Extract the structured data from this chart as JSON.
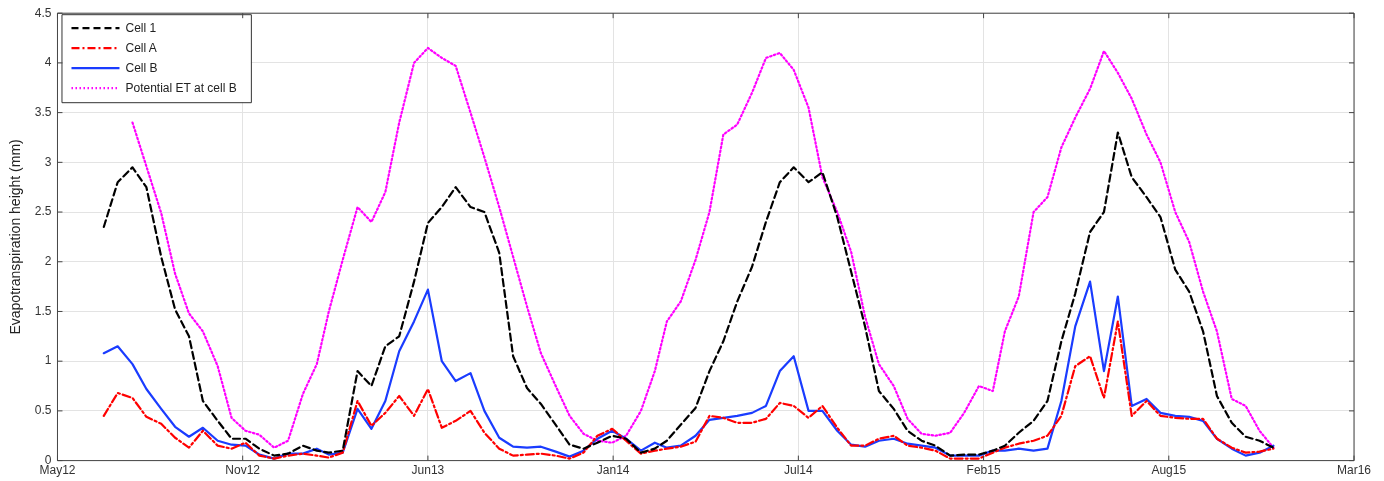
{
  "chart_data": {
    "type": "line",
    "ylabel": "Evapotranspiration height (mm)",
    "x": [
      "2012-07-01",
      "2012-07-16",
      "2012-08-01",
      "2012-08-16",
      "2012-09-01",
      "2012-09-16",
      "2012-10-01",
      "2012-10-16",
      "2012-11-01",
      "2012-11-16",
      "2012-12-01",
      "2012-12-16",
      "2013-01-01",
      "2013-01-16",
      "2013-02-01",
      "2013-02-16",
      "2013-03-01",
      "2013-03-16",
      "2013-04-01",
      "2013-04-16",
      "2013-05-01",
      "2013-05-16",
      "2013-06-01",
      "2013-06-16",
      "2013-07-01",
      "2013-07-16",
      "2013-08-01",
      "2013-08-16",
      "2013-09-01",
      "2013-09-16",
      "2013-10-01",
      "2013-10-16",
      "2013-11-01",
      "2013-11-16",
      "2013-12-01",
      "2013-12-16",
      "2014-01-01",
      "2014-01-16",
      "2014-02-01",
      "2014-02-16",
      "2014-03-01",
      "2014-03-16",
      "2014-04-01",
      "2014-04-16",
      "2014-05-01",
      "2014-05-16",
      "2014-06-01",
      "2014-06-16",
      "2014-07-01",
      "2014-07-16",
      "2014-08-01",
      "2014-08-16",
      "2014-09-01",
      "2014-09-16",
      "2014-10-01",
      "2014-10-16",
      "2014-11-01",
      "2014-11-16",
      "2014-12-01",
      "2014-12-16",
      "2015-01-01",
      "2015-01-16",
      "2015-02-01",
      "2015-02-16",
      "2015-03-01",
      "2015-03-16",
      "2015-04-01",
      "2015-04-16",
      "2015-05-01",
      "2015-05-16",
      "2015-06-01",
      "2015-06-16",
      "2015-07-01",
      "2015-07-16",
      "2015-08-01",
      "2015-08-16",
      "2015-09-01",
      "2015-09-16",
      "2015-10-01",
      "2015-10-16",
      "2015-11-01",
      "2015-11-16",
      "2015-12-01",
      "2015-12-16"
    ],
    "series": [
      {
        "name": "Cell 1",
        "color": "#000000",
        "line_style": "dashed",
        "values": [
          2.35,
          2.8,
          2.95,
          2.75,
          2.05,
          1.52,
          1.25,
          0.6,
          0.4,
          0.22,
          0.22,
          0.12,
          0.05,
          0.07,
          0.15,
          0.1,
          0.08,
          0.1,
          0.9,
          0.75,
          1.15,
          1.25,
          1.8,
          2.39,
          2.55,
          2.75,
          2.55,
          2.5,
          2.09,
          1.05,
          0.73,
          0.57,
          0.36,
          0.16,
          0.12,
          0.18,
          0.25,
          0.22,
          0.08,
          0.12,
          0.2,
          0.36,
          0.53,
          0.9,
          1.2,
          1.6,
          1.95,
          2.4,
          2.8,
          2.95,
          2.8,
          2.9,
          2.45,
          1.9,
          1.35,
          0.7,
          0.52,
          0.3,
          0.2,
          0.15,
          0.05,
          0.06,
          0.06,
          0.1,
          0.15,
          0.28,
          0.4,
          0.6,
          1.2,
          1.68,
          2.3,
          2.5,
          3.3,
          2.85,
          2.65,
          2.45,
          1.92,
          1.7,
          1.3,
          0.65,
          0.38,
          0.24,
          0.2,
          0.13
        ]
      },
      {
        "name": "Cell A",
        "color": "#ff0000",
        "line_style": "dashdot",
        "values": [
          0.45,
          0.68,
          0.63,
          0.44,
          0.37,
          0.23,
          0.13,
          0.3,
          0.15,
          0.12,
          0.18,
          0.05,
          0.02,
          0.05,
          0.07,
          0.05,
          0.03,
          0.08,
          0.6,
          0.35,
          0.48,
          0.65,
          0.45,
          0.72,
          0.33,
          0.4,
          0.5,
          0.28,
          0.12,
          0.05,
          0.06,
          0.07,
          0.05,
          0.02,
          0.08,
          0.25,
          0.32,
          0.2,
          0.07,
          0.1,
          0.12,
          0.14,
          0.19,
          0.45,
          0.43,
          0.38,
          0.38,
          0.42,
          0.58,
          0.55,
          0.43,
          0.55,
          0.33,
          0.15,
          0.15,
          0.22,
          0.25,
          0.15,
          0.13,
          0.1,
          0.02,
          0.02,
          0.02,
          0.08,
          0.13,
          0.17,
          0.2,
          0.25,
          0.45,
          0.95,
          1.05,
          0.63,
          1.4,
          0.45,
          0.6,
          0.45,
          0.43,
          0.42,
          0.42,
          0.22,
          0.13,
          0.08,
          0.09,
          0.12
        ]
      },
      {
        "name": "Cell B",
        "color": "#1a3cff",
        "line_style": "solid",
        "values": [
          1.08,
          1.15,
          0.97,
          0.72,
          0.52,
          0.34,
          0.24,
          0.33,
          0.2,
          0.16,
          0.15,
          0.06,
          0.02,
          0.07,
          0.07,
          0.12,
          0.06,
          0.08,
          0.52,
          0.32,
          0.6,
          1.1,
          1.4,
          1.72,
          1.0,
          0.8,
          0.88,
          0.5,
          0.23,
          0.14,
          0.13,
          0.14,
          0.09,
          0.04,
          0.1,
          0.22,
          0.3,
          0.22,
          0.1,
          0.18,
          0.13,
          0.15,
          0.25,
          0.41,
          0.43,
          0.45,
          0.48,
          0.55,
          0.9,
          1.05,
          0.5,
          0.5,
          0.3,
          0.16,
          0.14,
          0.2,
          0.22,
          0.17,
          0.15,
          0.13,
          0.05,
          0.05,
          0.05,
          0.1,
          0.1,
          0.12,
          0.1,
          0.12,
          0.6,
          1.35,
          1.8,
          0.9,
          1.65,
          0.55,
          0.62,
          0.48,
          0.45,
          0.44,
          0.4,
          0.22,
          0.12,
          0.05,
          0.08,
          0.15
        ]
      },
      {
        "name": "Potential ET at cell B",
        "color": "#ff00ff",
        "line_style": "dotted",
        "values": [
          null,
          null,
          3.4,
          2.96,
          2.49,
          1.88,
          1.48,
          1.3,
          0.95,
          0.43,
          0.3,
          0.26,
          0.13,
          0.2,
          0.67,
          0.97,
          1.5,
          2.02,
          2.55,
          2.4,
          2.7,
          3.4,
          4.0,
          4.15,
          4.05,
          3.97,
          3.5,
          3.05,
          2.55,
          2.05,
          1.55,
          1.08,
          0.75,
          0.45,
          0.27,
          0.2,
          0.18,
          0.25,
          0.5,
          0.9,
          1.4,
          1.6,
          2.02,
          2.5,
          3.28,
          3.38,
          3.7,
          4.05,
          4.1,
          3.93,
          3.55,
          2.85,
          2.5,
          2.1,
          1.45,
          0.97,
          0.75,
          0.42,
          0.27,
          0.25,
          0.28,
          0.48,
          0.75,
          0.7,
          1.3,
          1.65,
          2.5,
          2.65,
          3.15,
          3.45,
          3.74,
          4.12,
          3.9,
          3.64,
          3.28,
          3.0,
          2.5,
          2.2,
          1.7,
          1.3,
          0.62,
          0.55,
          0.3,
          0.13
        ]
      }
    ],
    "xlim": [
      "2012-05-12",
      "2016-03-12"
    ],
    "xticks": [
      {
        "value": "2012-05-12",
        "label": "May12"
      },
      {
        "value": "2012-11-28",
        "label": "Nov12"
      },
      {
        "value": "2013-06-16",
        "label": "Jun13"
      },
      {
        "value": "2014-01-02",
        "label": "Jan14"
      },
      {
        "value": "2014-07-21",
        "label": "Jul14"
      },
      {
        "value": "2015-02-06",
        "label": "Feb15"
      },
      {
        "value": "2015-08-25",
        "label": "Aug15"
      },
      {
        "value": "2016-03-12",
        "label": "Mar16"
      }
    ],
    "ylim": [
      0,
      4.5
    ],
    "yticks": [
      0,
      0.5,
      1,
      1.5,
      2,
      2.5,
      3,
      3.5,
      4,
      4.5
    ],
    "grid": true,
    "legend": "top left",
    "marker": "none"
  }
}
